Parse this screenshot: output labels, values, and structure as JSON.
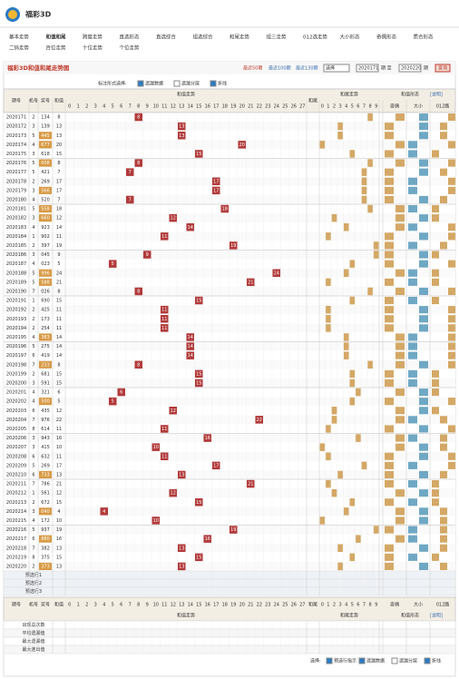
{
  "header": {
    "title": "福彩3D"
  },
  "nav": [
    [
      "基本走势",
      "和值和尾",
      "跨度走势",
      "直选形态",
      "直选综合",
      "组选综合",
      "和尾走势",
      "组三走势",
      "012选走势",
      "大小形态",
      "奇偶形态",
      "质合形态"
    ],
    [
      "二码走势",
      "百位走势",
      "十位走势",
      "个位走势"
    ]
  ],
  "panel": {
    "title": "福彩3D和值和尾走势图",
    "recent": [
      "最近50期",
      "最近100期",
      "最近130期"
    ],
    "select": "选择",
    "from": "2020171",
    "mid": "期 至",
    "to": "2020220",
    "end": "期",
    "button": "查询",
    "mark_label": "标注形式选择:",
    "options": [
      "遗漏数据",
      "遗漏分层",
      "折线"
    ]
  },
  "table": {
    "columns": [
      "期号",
      "机号",
      "奖号",
      "和值"
    ],
    "groups": [
      "和值走势",
      "和尾走势",
      "和值形态",
      "[说明]"
    ],
    "tail_label": "和尾",
    "forms": [
      "奇偶",
      "大小",
      "012路"
    ],
    "sum_header": [
      0,
      1,
      2,
      3,
      4,
      5,
      6,
      7,
      8,
      9,
      10,
      11,
      12,
      13,
      14,
      15,
      16,
      17,
      18,
      19,
      20,
      21,
      22,
      23,
      24,
      25,
      26,
      27
    ],
    "tail_header": [
      0,
      1,
      2,
      3,
      4,
      5,
      6,
      7,
      8,
      9
    ],
    "rows": [
      [
        "2020171",
        2,
        "134",
        8
      ],
      [
        "2020172",
        3,
        "139",
        13
      ],
      [
        "2020173",
        5,
        "445",
        13
      ],
      [
        "2020174",
        4,
        "677",
        20
      ],
      [
        "2020175",
        3,
        "618",
        15
      ],
      [
        "2020176",
        5,
        "008",
        8
      ],
      [
        "2020177",
        5,
        "421",
        7
      ],
      [
        "2020178",
        2,
        "269",
        17
      ],
      [
        "2020179",
        3,
        "566",
        17
      ],
      [
        "2020180",
        4,
        "520",
        7
      ],
      [
        "2020181",
        5,
        "558",
        18
      ],
      [
        "2020182",
        3,
        "660",
        12
      ],
      [
        "2020183",
        4,
        "923",
        14
      ],
      [
        "2020184",
        1,
        "902",
        11
      ],
      [
        "2020185",
        2,
        "397",
        19
      ],
      [
        "2020186",
        3,
        "045",
        9
      ],
      [
        "2020187",
        4,
        "023",
        5
      ],
      [
        "2020188",
        5,
        "996",
        24
      ],
      [
        "2020189",
        5,
        "588",
        21
      ],
      [
        "2020190",
        7,
        "026",
        8
      ],
      [
        "2020191",
        1,
        "690",
        15
      ],
      [
        "2020192",
        2,
        "425",
        11
      ],
      [
        "2020193",
        2,
        "173",
        11
      ],
      [
        "2020194",
        2,
        "254",
        11
      ],
      [
        "2020195",
        4,
        "383",
        14
      ],
      [
        "2020196",
        5,
        "275",
        14
      ],
      [
        "2020197",
        6,
        "419",
        14
      ],
      [
        "2020198",
        7,
        "233",
        8
      ],
      [
        "2020199",
        2,
        "681",
        15
      ],
      [
        "2020200",
        3,
        "591",
        15
      ],
      [
        "2020201",
        4,
        "321",
        6
      ],
      [
        "2020202",
        4,
        "500",
        5
      ],
      [
        "2020203",
        6,
        "435",
        12
      ],
      [
        "2020204",
        7,
        "976",
        22
      ],
      [
        "2020205",
        8,
        "614",
        11
      ],
      [
        "2020206",
        3,
        "943",
        16
      ],
      [
        "2020207",
        3,
        "415",
        10
      ],
      [
        "2020208",
        6,
        "632",
        11
      ],
      [
        "2020209",
        5,
        "269",
        17
      ],
      [
        "2020210",
        6,
        "733",
        13
      ],
      [
        "2020211",
        7,
        "786",
        21
      ],
      [
        "2020212",
        1,
        "561",
        12
      ],
      [
        "2020213",
        2,
        "672",
        15
      ],
      [
        "2020214",
        3,
        "040",
        4
      ],
      [
        "2020215",
        4,
        "172",
        10
      ],
      [
        "2020216",
        5,
        "937",
        19
      ],
      [
        "2020217",
        6,
        "880",
        16
      ],
      [
        "2020218",
        7,
        "382",
        13
      ],
      [
        "2020219",
        8,
        "375",
        15
      ],
      [
        "2020220",
        2,
        "373",
        13
      ]
    ],
    "preselect": [
      "预选行1",
      "预选行2",
      "预选行3"
    ],
    "stats": [
      "出现总次数",
      "平均遗漏值",
      "最大遗漏值",
      "最大连出值"
    ]
  },
  "footer": {
    "label": "选择:",
    "options": [
      "预选行指示",
      "遗漏数据",
      "遗漏分层",
      "折线"
    ]
  }
}
